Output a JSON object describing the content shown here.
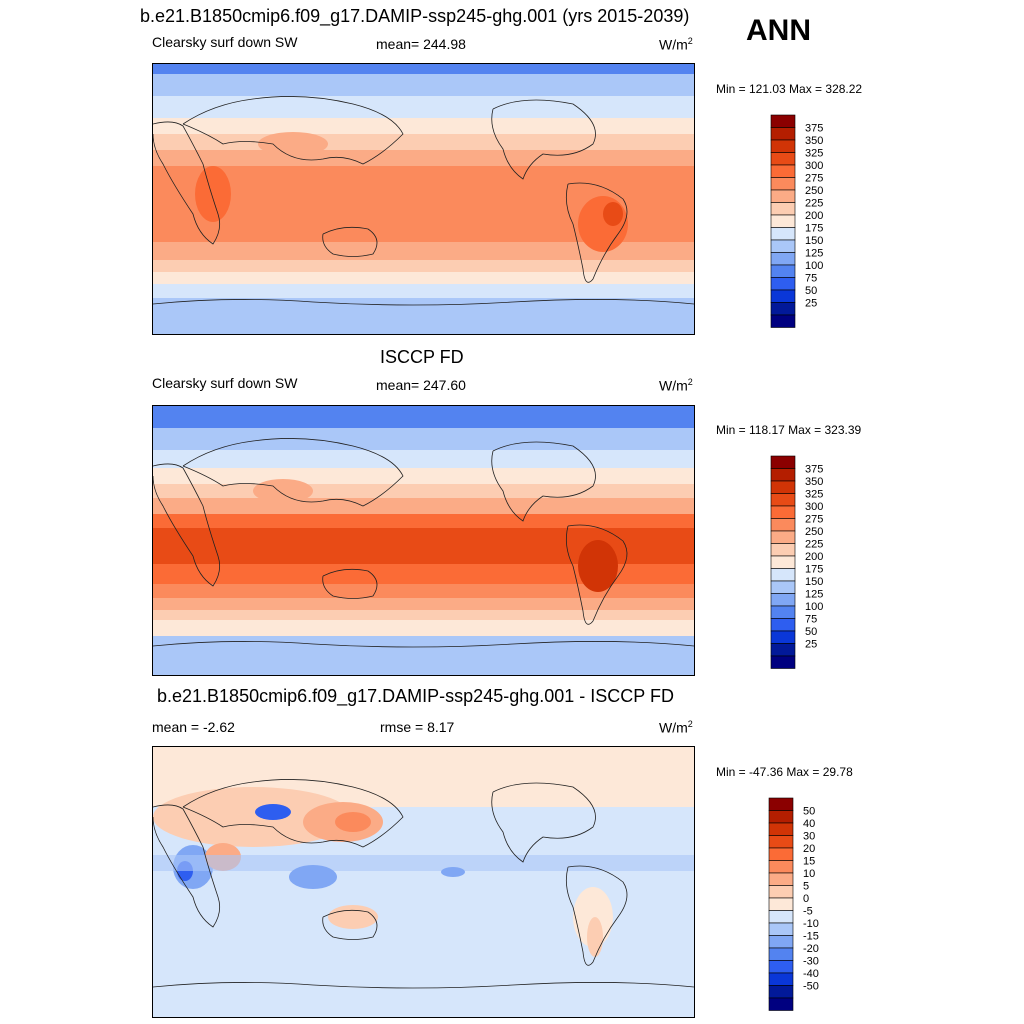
{
  "season": "ANN",
  "panels": [
    {
      "title": "b.e21.B1850cmip6.f09_g17.DAMIP-ssp245-ghg.001 (yrs 2015-2039)",
      "left_label": "Clearsky surf down SW",
      "center_label": "mean= 244.98",
      "units_base": "W/m",
      "units_exp": "2",
      "minmax": "Min = 121.03 Max = 328.22",
      "colorbar": {
        "labels": [
          "375",
          "350",
          "325",
          "300",
          "275",
          "250",
          "225",
          "200",
          "175",
          "150",
          "125",
          "100",
          "75",
          "50",
          "25"
        ],
        "colors": [
          "#8b0000",
          "#b41e00",
          "#d13406",
          "#e84b16",
          "#fb6b36",
          "#fb8a5c",
          "#fbab86",
          "#fccdb2",
          "#fde8d8",
          "#d6e6fb",
          "#aac7f8",
          "#80a7f4",
          "#5383f0",
          "#2e5ef0",
          "#0a37d8",
          "#021999",
          "#000080"
        ]
      }
    },
    {
      "title": "ISCCP FD",
      "left_label": "Clearsky surf down SW",
      "center_label": "mean= 247.60",
      "units_base": "W/m",
      "units_exp": "2",
      "minmax": "Min = 118.17 Max = 323.39",
      "colorbar": {
        "labels": [
          "375",
          "350",
          "325",
          "300",
          "275",
          "250",
          "225",
          "200",
          "175",
          "150",
          "125",
          "100",
          "75",
          "50",
          "25"
        ],
        "colors": [
          "#8b0000",
          "#b41e00",
          "#d13406",
          "#e84b16",
          "#fb6b36",
          "#fb8a5c",
          "#fbab86",
          "#fccdb2",
          "#fde8d8",
          "#d6e6fb",
          "#aac7f8",
          "#80a7f4",
          "#5383f0",
          "#2e5ef0",
          "#0a37d8",
          "#021999",
          "#000080"
        ]
      }
    },
    {
      "title": "b.e21.B1850cmip6.f09_g17.DAMIP-ssp245-ghg.001 - ISCCP FD",
      "left_label": "mean =  -2.62",
      "center_label": "rmse =   8.17",
      "units_base": "W/m",
      "units_exp": "2",
      "minmax": "Min = -47.36 Max =  29.78",
      "colorbar": {
        "labels": [
          "50",
          "40",
          "30",
          "20",
          "15",
          "10",
          "5",
          "0",
          "-5",
          "-10",
          "-15",
          "-20",
          "-30",
          "-40",
          "-50"
        ],
        "colors": [
          "#8b0000",
          "#b41e00",
          "#d13406",
          "#e84b16",
          "#fb6b36",
          "#fb8a5c",
          "#fbab86",
          "#fccdb2",
          "#fde8d8",
          "#d6e6fb",
          "#aac7f8",
          "#80a7f4",
          "#5383f0",
          "#2e5ef0",
          "#0a37d8",
          "#021999",
          "#000080"
        ]
      }
    }
  ]
}
